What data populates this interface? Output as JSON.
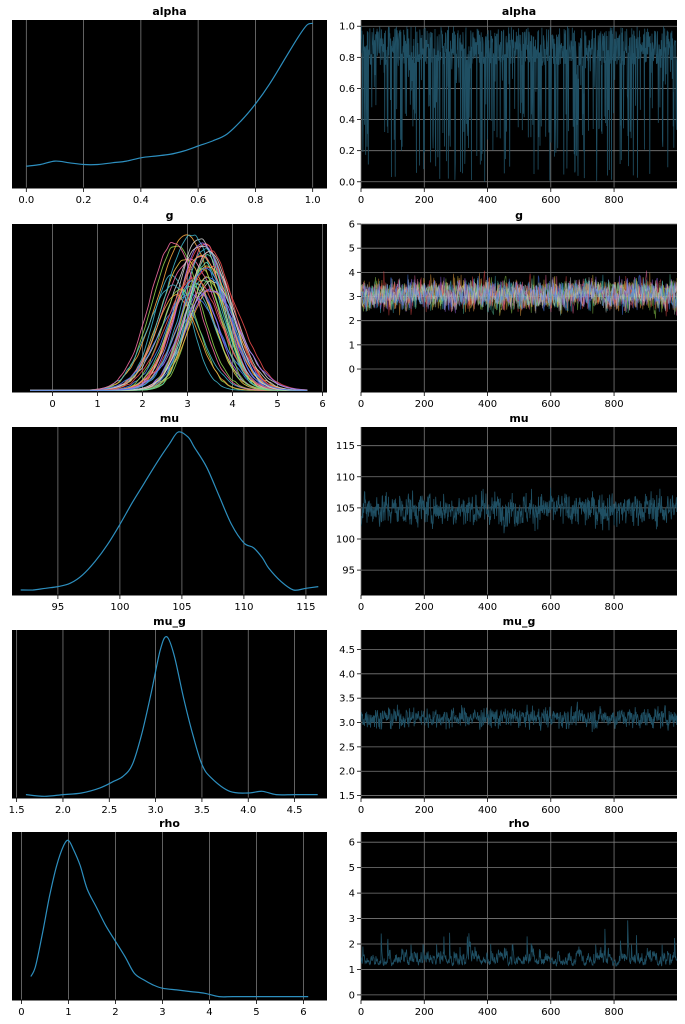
{
  "figure": {
    "background": "#ffffff",
    "panel_background": "#000000",
    "grid_color": "#7a7a7a",
    "trace_color": "#1f4f63",
    "kde_color": "#2d8fbf",
    "multi_chain_palette": [
      "#e8c547",
      "#3fb3c9",
      "#f06aa0",
      "#8fd14f",
      "#f2a541",
      "#9b6cf0",
      "#e84a4a",
      "#5ad1a6",
      "#cfcfcf",
      "#4a7ff0"
    ]
  },
  "chart_data": [
    {
      "title": "alpha",
      "type": "line",
      "kind": "kde",
      "xlim": [
        -0.05,
        1.05
      ],
      "ylim": [
        0,
        1.0
      ],
      "xticks": [
        0.0,
        0.2,
        0.4,
        0.6,
        0.8,
        1.0
      ],
      "xtick_labels": [
        "0.0",
        "0.2",
        "0.4",
        "0.6",
        "0.8",
        "1.0"
      ],
      "series": [
        {
          "x": [
            0,
            0.05,
            0.1,
            0.15,
            0.2,
            0.25,
            0.3,
            0.35,
            0.4,
            0.45,
            0.5,
            0.55,
            0.6,
            0.65,
            0.7,
            0.75,
            0.8,
            0.85,
            0.9,
            0.95,
            0.98,
            1.0
          ],
          "y": [
            0.13,
            0.14,
            0.16,
            0.15,
            0.14,
            0.14,
            0.15,
            0.16,
            0.18,
            0.19,
            0.2,
            0.22,
            0.25,
            0.28,
            0.32,
            0.4,
            0.5,
            0.62,
            0.76,
            0.9,
            0.97,
            0.98
          ]
        }
      ]
    },
    {
      "title": "alpha",
      "type": "line",
      "kind": "trace",
      "xlim": [
        0,
        999
      ],
      "ylim": [
        -0.04,
        1.04
      ],
      "xticks": [
        0,
        200,
        400,
        600,
        800
      ],
      "xtick_labels": [
        "0",
        "200",
        "400",
        "600",
        "800"
      ],
      "yticks": [
        0.0,
        0.2,
        0.4,
        0.6,
        0.8,
        1.0
      ],
      "ytick_labels": [
        "0.0",
        "0.2",
        "0.4",
        "0.6",
        "0.8",
        "1.0"
      ],
      "n": 1000,
      "center": 0.72,
      "spread": 0.25,
      "lo": 0.0,
      "hi": 1.0
    },
    {
      "title": "g",
      "type": "line",
      "kind": "kde_multi",
      "xlim": [
        -0.9,
        6.1
      ],
      "ylim": [
        0,
        1.0
      ],
      "xticks": [
        0,
        1,
        2,
        3,
        4,
        5,
        6
      ],
      "xtick_labels": [
        "0",
        "1",
        "2",
        "3",
        "4",
        "5",
        "6"
      ],
      "curves": 40,
      "center": 3.1,
      "width": 0.55,
      "x_start": -0.5,
      "x_end": 5.7
    },
    {
      "title": "g",
      "type": "line",
      "kind": "trace_multi",
      "xlim": [
        0,
        999
      ],
      "ylim": [
        -0.95,
        6.0
      ],
      "xticks": [
        0,
        200,
        400,
        600,
        800
      ],
      "xtick_labels": [
        "0",
        "200",
        "400",
        "600",
        "800"
      ],
      "yticks": [
        0,
        1,
        2,
        3,
        4,
        5,
        6
      ],
      "ytick_labels": [
        "0",
        "1",
        "2",
        "3",
        "4",
        "5",
        "6"
      ],
      "n": 500,
      "center": 3.1,
      "spread": 0.6,
      "lo": -0.6,
      "hi": 5.6,
      "chains": 10
    },
    {
      "title": "mu",
      "type": "line",
      "kind": "kde",
      "xlim": [
        91.3,
        116.7
      ],
      "ylim": [
        0,
        1.0
      ],
      "xticks": [
        95,
        100,
        105,
        110,
        115
      ],
      "xtick_labels": [
        "95",
        "100",
        "105",
        "110",
        "115"
      ],
      "series": [
        {
          "x": [
            92,
            93,
            94,
            95,
            96,
            97,
            98,
            99,
            100,
            101,
            102,
            103,
            104,
            104.7,
            105.5,
            106,
            107,
            108,
            109,
            110,
            110.8,
            111.5,
            112,
            113,
            114,
            115,
            116
          ],
          "y": [
            0.03,
            0.03,
            0.04,
            0.05,
            0.07,
            0.12,
            0.2,
            0.3,
            0.42,
            0.55,
            0.67,
            0.79,
            0.9,
            0.97,
            0.94,
            0.88,
            0.76,
            0.59,
            0.42,
            0.31,
            0.28,
            0.22,
            0.16,
            0.08,
            0.03,
            0.04,
            0.05
          ]
        }
      ]
    },
    {
      "title": "mu",
      "type": "line",
      "kind": "trace",
      "xlim": [
        0,
        999
      ],
      "ylim": [
        91.0,
        118.0
      ],
      "xticks": [
        0,
        200,
        400,
        600,
        800
      ],
      "xtick_labels": [
        "0",
        "200",
        "400",
        "600",
        "800"
      ],
      "yticks": [
        95,
        100,
        105,
        110,
        115
      ],
      "ytick_labels": [
        "95",
        "100",
        "105",
        "110",
        "115"
      ],
      "n": 1000,
      "center": 104.8,
      "spread": 2.6,
      "lo": 92.5,
      "hi": 116.5
    },
    {
      "title": "mu_g",
      "type": "line",
      "kind": "kde",
      "xlim": [
        1.45,
        4.85
      ],
      "ylim": [
        0,
        1.0
      ],
      "xticks": [
        1.5,
        2.0,
        2.5,
        3.0,
        3.5,
        4.0,
        4.5
      ],
      "xtick_labels": [
        "1.5",
        "2.0",
        "2.5",
        "3.0",
        "3.5",
        "4.0",
        "4.5"
      ],
      "series": [
        {
          "x": [
            1.6,
            1.8,
            2.0,
            2.2,
            2.4,
            2.55,
            2.65,
            2.75,
            2.85,
            2.95,
            3.05,
            3.12,
            3.2,
            3.3,
            3.4,
            3.5,
            3.6,
            3.8,
            4.0,
            4.15,
            4.3,
            4.5,
            4.75
          ],
          "y": [
            0.02,
            0.01,
            0.02,
            0.03,
            0.06,
            0.1,
            0.13,
            0.2,
            0.38,
            0.62,
            0.88,
            0.96,
            0.85,
            0.6,
            0.38,
            0.2,
            0.12,
            0.04,
            0.03,
            0.04,
            0.02,
            0.02,
            0.02
          ]
        }
      ]
    },
    {
      "title": "mu_g",
      "type": "line",
      "kind": "trace",
      "xlim": [
        0,
        999
      ],
      "ylim": [
        1.45,
        4.9
      ],
      "xticks": [
        0,
        200,
        400,
        600,
        800
      ],
      "xtick_labels": [
        "0",
        "200",
        "400",
        "600",
        "800"
      ],
      "yticks": [
        1.5,
        2.0,
        2.5,
        3.0,
        3.5,
        4.0,
        4.5
      ],
      "ytick_labels": [
        "1.5",
        "2.0",
        "2.5",
        "3.0",
        "3.5",
        "4.0",
        "4.5"
      ],
      "n": 1000,
      "center": 3.1,
      "spread": 0.2,
      "lo": 1.6,
      "hi": 4.8
    },
    {
      "title": "rho",
      "type": "line",
      "kind": "kde",
      "xlim": [
        -0.2,
        6.5
      ],
      "ylim": [
        0,
        1.0
      ],
      "xticks": [
        0,
        1,
        2,
        3,
        4,
        5,
        6
      ],
      "xtick_labels": [
        "0",
        "1",
        "2",
        "3",
        "4",
        "5",
        "6"
      ],
      "series": [
        {
          "x": [
            0.2,
            0.3,
            0.45,
            0.6,
            0.75,
            0.9,
            1.0,
            1.1,
            1.25,
            1.4,
            1.6,
            1.8,
            2.0,
            2.2,
            2.4,
            2.6,
            2.8,
            3.0,
            3.3,
            3.6,
            3.9,
            4.2,
            4.5,
            5.0,
            5.5,
            6.1
          ],
          "y": [
            0.14,
            0.2,
            0.4,
            0.62,
            0.8,
            0.92,
            0.95,
            0.9,
            0.8,
            0.66,
            0.55,
            0.44,
            0.35,
            0.26,
            0.16,
            0.12,
            0.09,
            0.07,
            0.06,
            0.05,
            0.04,
            0.02,
            0.02,
            0.02,
            0.02,
            0.02
          ]
        }
      ]
    },
    {
      "title": "rho",
      "type": "line",
      "kind": "trace",
      "xlim": [
        0,
        999
      ],
      "ylim": [
        -0.2,
        6.4
      ],
      "xticks": [
        0,
        200,
        400,
        600,
        800
      ],
      "xtick_labels": [
        "0",
        "200",
        "400",
        "600",
        "800"
      ],
      "yticks": [
        0,
        1,
        2,
        3,
        4,
        5,
        6
      ],
      "ytick_labels": [
        "0",
        "1",
        "2",
        "3",
        "4",
        "5",
        "6"
      ],
      "n": 1000,
      "center": 1.3,
      "spread": 0.7,
      "lo": 0.05,
      "hi": 6.0,
      "skew": true
    }
  ]
}
